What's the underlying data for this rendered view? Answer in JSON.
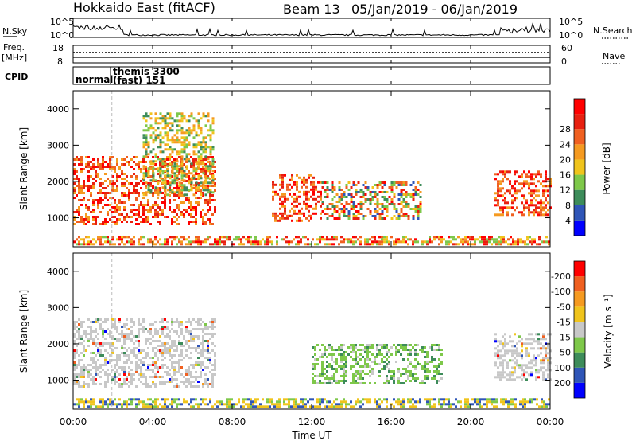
{
  "header": {
    "radar": "Hokkaido East (fitACF)",
    "beam": "Beam 13",
    "date_range": "05/Jan/2019 - 06/Jan/2019"
  },
  "summary_panels": {
    "nsky": {
      "label": "N.Sky",
      "tick_top": "10^5",
      "tick_bottom": "10^0"
    },
    "nsearch": {
      "label": "N.Search",
      "tick_top": "10^5",
      "tick_bottom": "10^0"
    },
    "freq": {
      "label_line1": "Freq.",
      "label_line2": "[MHz]",
      "tick_top": "18",
      "tick_bottom": "8"
    },
    "nave": {
      "label": "Nave",
      "tick_top": "60",
      "tick_bottom": "0"
    },
    "cpid": {
      "label": "CPID",
      "segments": [
        {
          "text": "normal",
          "start_hour": 0,
          "end_hour": 1.95
        },
        {
          "text_line1": "themis 3300",
          "text_line2": "(fast) 151",
          "start_hour": 1.95,
          "end_hour": 24
        }
      ]
    }
  },
  "chart_data": [
    {
      "type": "heatmap",
      "name": "power",
      "ylabel": "Slant Range [km]",
      "yticks": [
        "1000",
        "2000",
        "3000",
        "4000"
      ],
      "ylim": [
        200,
        4500
      ],
      "colorbar": {
        "label": "Power [dB]",
        "ticks": [
          "4",
          "8",
          "12",
          "16",
          "20",
          "24",
          "28"
        ],
        "colors": [
          "#0000ff",
          "#2f55b7",
          "#3d8c5a",
          "#7ec84a",
          "#f0c41c",
          "#f59a20",
          "#f06020",
          "#e82010",
          "#ff0000"
        ]
      },
      "scatter_regions": [
        {
          "t": [
            0.0,
            7.1
          ],
          "r": [
            850,
            2700
          ],
          "level": "high"
        },
        {
          "t": [
            3.5,
            7.1
          ],
          "r": [
            1600,
            3900
          ],
          "level": "mid"
        },
        {
          "t": [
            10.0,
            12.5
          ],
          "r": [
            900,
            2200
          ],
          "level": "high"
        },
        {
          "t": [
            12.5,
            17.5
          ],
          "r": [
            1000,
            2000
          ],
          "level": "mixed"
        },
        {
          "t": [
            21.2,
            24.0
          ],
          "r": [
            1100,
            2300
          ],
          "level": "high"
        },
        {
          "t": [
            0.0,
            24.0
          ],
          "r": [
            250,
            500
          ],
          "level": "band"
        }
      ]
    },
    {
      "type": "heatmap",
      "name": "velocity",
      "ylabel": "Slant Range [km]",
      "yticks": [
        "1000",
        "2000",
        "3000",
        "4000"
      ],
      "ylim": [
        200,
        4500
      ],
      "colorbar": {
        "label": "Velocity [m s⁻¹]",
        "ticks": [
          "200",
          "100",
          "50",
          "15",
          "-15",
          "-50",
          "-100",
          "-200"
        ],
        "colors": [
          "#0000ff",
          "#2f55b7",
          "#3d8c5a",
          "#7ec84a",
          "#c8c8c8",
          "#f0c41c",
          "#f59a20",
          "#f06020",
          "#ff0000"
        ]
      },
      "scatter_regions": [
        {
          "t": [
            0.0,
            7.1
          ],
          "r": [
            850,
            2700
          ],
          "level": "ground"
        },
        {
          "t": [
            12.0,
            18.5
          ],
          "r": [
            900,
            2000
          ],
          "level": "positive"
        },
        {
          "t": [
            21.2,
            24.0
          ],
          "r": [
            1000,
            2300
          ],
          "level": "ground"
        },
        {
          "t": [
            0.0,
            24.0
          ],
          "r": [
            250,
            500
          ],
          "level": "band"
        }
      ]
    }
  ],
  "x_axis": {
    "label": "Time UT",
    "ticks": [
      "00:00",
      "04:00",
      "08:00",
      "12:00",
      "16:00",
      "20:00",
      "00:00"
    ],
    "range_hours": [
      0,
      24
    ]
  }
}
